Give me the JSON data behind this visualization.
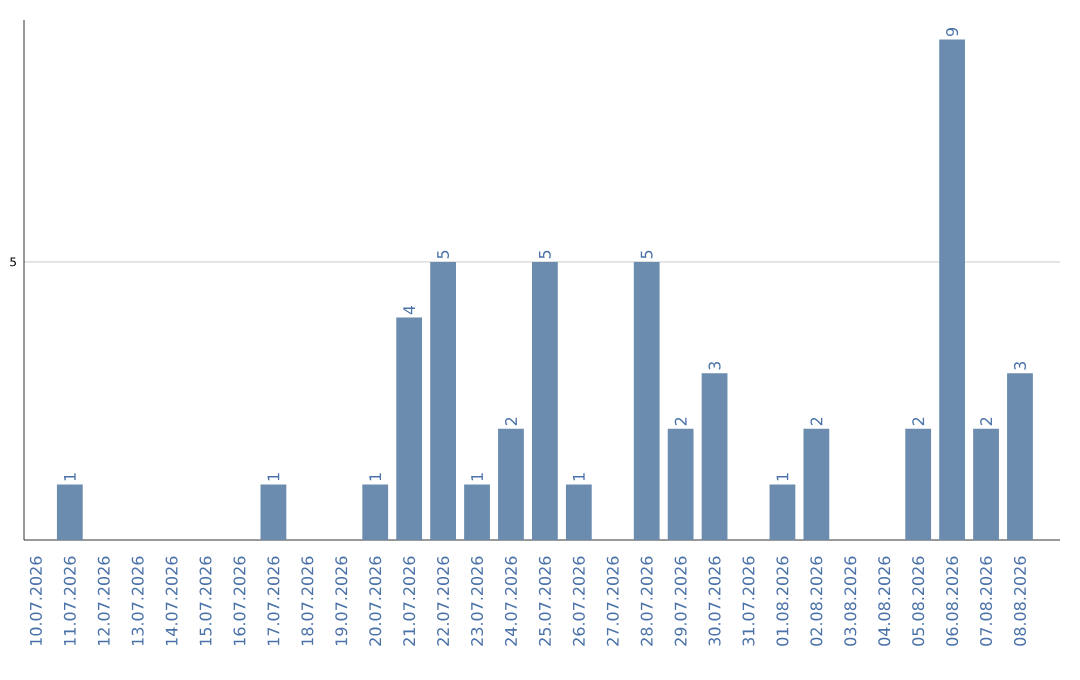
{
  "chart_data": {
    "type": "bar",
    "categories": [
      "10.07.2026",
      "11.07.2026",
      "12.07.2026",
      "13.07.2026",
      "14.07.2026",
      "15.07.2026",
      "16.07.2026",
      "17.07.2026",
      "18.07.2026",
      "19.07.2026",
      "20.07.2026",
      "21.07.2026",
      "22.07.2026",
      "23.07.2026",
      "24.07.2026",
      "25.07.2026",
      "26.07.2026",
      "27.07.2026",
      "28.07.2026",
      "29.07.2026",
      "30.07.2026",
      "31.07.2026",
      "01.08.2026",
      "02.08.2026",
      "03.08.2026",
      "04.08.2026",
      "05.08.2026",
      "06.08.2026",
      "07.08.2026",
      "08.08.2026"
    ],
    "values": [
      0,
      1,
      0,
      0,
      0,
      0,
      0,
      1,
      0,
      0,
      1,
      4,
      5,
      1,
      2,
      5,
      1,
      0,
      5,
      2,
      3,
      0,
      1,
      2,
      0,
      0,
      2,
      9,
      2,
      3
    ],
    "value_labels": [
      null,
      "1",
      null,
      null,
      null,
      null,
      null,
      "1",
      null,
      null,
      "1",
      "4",
      "5",
      "1",
      "2",
      "5",
      "1",
      null,
      "5",
      "2",
      "3",
      null,
      "1",
      "2",
      null,
      null,
      "2",
      "9",
      "2",
      "3"
    ],
    "color": "#6b8cae",
    "ylim": [
      0,
      9.35
    ],
    "yticks": [
      5
    ],
    "grid": "y"
  }
}
